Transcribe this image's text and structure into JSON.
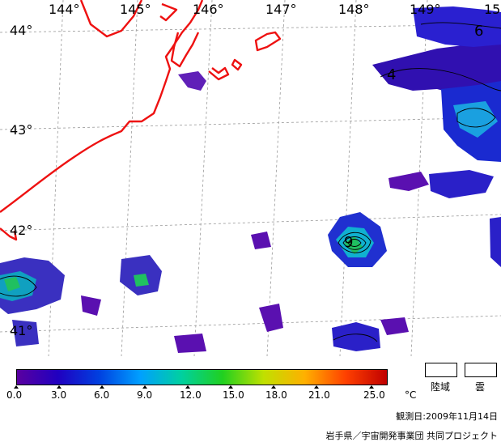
{
  "map": {
    "longitudes": [
      "144°",
      "145°",
      "146°",
      "147°",
      "148°",
      "149°",
      "15"
    ],
    "latitudes": [
      "44°",
      "43°",
      "42°",
      "41°"
    ],
    "contour_labels": [
      "4",
      "6",
      "9"
    ],
    "colors": {
      "coast": "#ee1111",
      "grid": "#999999",
      "cold": "#5a10b0",
      "cool": "#1a2ad0",
      "mild": "#10b0d0",
      "warm": "#20c060"
    }
  },
  "colorbar": {
    "stops": [
      "#5a00a0",
      "#2000c0",
      "#0040e0",
      "#00a0ff",
      "#00d0a0",
      "#20d020",
      "#c0e000",
      "#ffb000",
      "#ff4000",
      "#c00000"
    ],
    "ticks": [
      "0.0",
      "3.0",
      "6.0",
      "9.0",
      "12.0",
      "15.0",
      "18.0",
      "21.0",
      "25.0"
    ],
    "unit": "°C"
  },
  "legend": {
    "land": "陸域",
    "cloud": "雲"
  },
  "footer": {
    "observed": "観測日:2009年11月14日",
    "credit": "岩手県／宇宙開発事業団 共同プロジェクト"
  }
}
